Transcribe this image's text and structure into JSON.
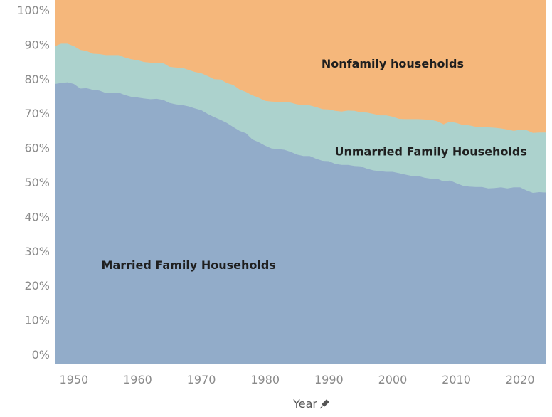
{
  "chart_data": {
    "type": "area",
    "stacked": true,
    "percent_stacked": true,
    "xlabel": "Year",
    "xlim": [
      1947,
      2024
    ],
    "ylim": [
      0,
      100
    ],
    "x_ticks": [
      1950,
      1960,
      1970,
      1980,
      1990,
      2000,
      2010,
      2020
    ],
    "y_ticks": [
      0,
      10,
      20,
      30,
      40,
      50,
      60,
      70,
      80,
      90,
      100
    ],
    "y_tick_labels": [
      "0%",
      "10%",
      "20%",
      "30%",
      "40%",
      "50%",
      "60%",
      "70%",
      "80%",
      "90%",
      "100%"
    ],
    "grid": false,
    "x": [
      1947,
      1948,
      1949,
      1950,
      1951,
      1952,
      1953,
      1954,
      1955,
      1956,
      1957,
      1958,
      1959,
      1960,
      1961,
      1962,
      1963,
      1964,
      1965,
      1966,
      1967,
      1968,
      1969,
      1970,
      1971,
      1972,
      1973,
      1974,
      1975,
      1976,
      1977,
      1978,
      1979,
      1980,
      1981,
      1982,
      1983,
      1984,
      1985,
      1986,
      1987,
      1988,
      1989,
      1990,
      1991,
      1992,
      1993,
      1994,
      1995,
      1996,
      1997,
      1998,
      1999,
      2000,
      2001,
      2002,
      2003,
      2004,
      2005,
      2006,
      2007,
      2008,
      2009,
      2010,
      2011,
      2012,
      2013,
      2014,
      2015,
      2016,
      2017,
      2018,
      2019,
      2020,
      2021,
      2022,
      2023,
      2024
    ],
    "series": [
      {
        "name": "Married Family Households",
        "color": "#92acc9",
        "values": [
          78.5,
          78.8,
          79.0,
          78.5,
          77.2,
          77.3,
          76.8,
          76.6,
          75.9,
          75.9,
          76.0,
          75.3,
          74.8,
          74.6,
          74.3,
          74.1,
          74.2,
          73.9,
          73.0,
          72.6,
          72.4,
          72.0,
          71.4,
          70.9,
          69.8,
          68.9,
          68.1,
          67.2,
          66.0,
          64.9,
          64.2,
          62.4,
          61.6,
          60.6,
          59.8,
          59.6,
          59.4,
          58.8,
          58.0,
          57.6,
          57.6,
          56.8,
          56.2,
          56.1,
          55.3,
          55.0,
          55.0,
          54.7,
          54.6,
          53.9,
          53.4,
          53.2,
          53.0,
          53.0,
          52.6,
          52.2,
          51.8,
          51.8,
          51.3,
          51.0,
          51.0,
          50.2,
          50.5,
          49.7,
          49.0,
          48.7,
          48.6,
          48.6,
          48.2,
          48.3,
          48.5,
          48.2,
          48.5,
          48.5,
          47.6,
          46.9,
          47.1,
          47.0
        ]
      },
      {
        "name": "Unmarried Family Households",
        "color": "#acd2cd",
        "values": [
          11.0,
          11.4,
          11.2,
          11.0,
          11.2,
          10.8,
          10.5,
          10.6,
          11.0,
          11.0,
          10.9,
          10.9,
          10.9,
          10.8,
          10.6,
          10.6,
          10.5,
          10.7,
          10.5,
          10.7,
          10.8,
          10.6,
          10.6,
          10.7,
          11.0,
          11.0,
          11.7,
          11.6,
          12.2,
          12.0,
          12.0,
          12.8,
          12.9,
          13.0,
          13.6,
          13.7,
          13.9,
          14.3,
          14.6,
          14.8,
          14.7,
          15.0,
          15.0,
          15.0,
          15.4,
          15.5,
          15.8,
          16.0,
          15.7,
          16.3,
          16.4,
          16.2,
          16.4,
          16.0,
          15.8,
          16.1,
          16.5,
          16.5,
          16.9,
          17.1,
          16.7,
          16.6,
          17.1,
          17.5,
          17.6,
          17.8,
          17.5,
          17.4,
          17.7,
          17.5,
          17.1,
          17.1,
          16.4,
          16.7,
          17.5,
          17.4,
          17.3,
          17.4
        ]
      },
      {
        "name": "Nonfamily households",
        "color": "#f5b77b",
        "values": [
          10.5,
          9.8,
          9.8,
          10.5,
          11.6,
          11.9,
          12.7,
          12.8,
          13.1,
          13.1,
          13.1,
          13.8,
          14.3,
          14.6,
          15.1,
          15.3,
          15.3,
          15.4,
          16.5,
          16.7,
          16.8,
          17.4,
          18.0,
          18.4,
          19.2,
          20.1,
          20.2,
          21.2,
          21.8,
          23.1,
          23.8,
          24.8,
          25.5,
          26.4,
          26.6,
          26.7,
          26.7,
          26.9,
          27.4,
          27.6,
          27.7,
          28.2,
          28.8,
          28.9,
          29.3,
          29.5,
          29.2,
          29.3,
          29.7,
          29.8,
          30.2,
          30.6,
          30.6,
          31.0,
          31.6,
          31.7,
          31.7,
          31.7,
          31.8,
          31.9,
          32.3,
          33.2,
          32.4,
          32.8,
          33.4,
          33.5,
          33.9,
          34.0,
          34.1,
          34.2,
          34.4,
          34.7,
          35.1,
          34.8,
          34.9,
          35.7,
          35.6,
          35.6
        ]
      }
    ],
    "area_labels": [
      {
        "series": "Married Family Households",
        "text": "Married Family Households",
        "x": 1968,
        "y": 26
      },
      {
        "series": "Unmarried Family Households",
        "text": "Unmarried Family Households",
        "x": 2006,
        "y": 59
      },
      {
        "series": "Nonfamily households",
        "text": "Nonfamily households",
        "x": 2000,
        "y": 84.5
      }
    ]
  },
  "axis": {
    "x_title": "Year",
    "pin_icon": "pin-icon"
  }
}
